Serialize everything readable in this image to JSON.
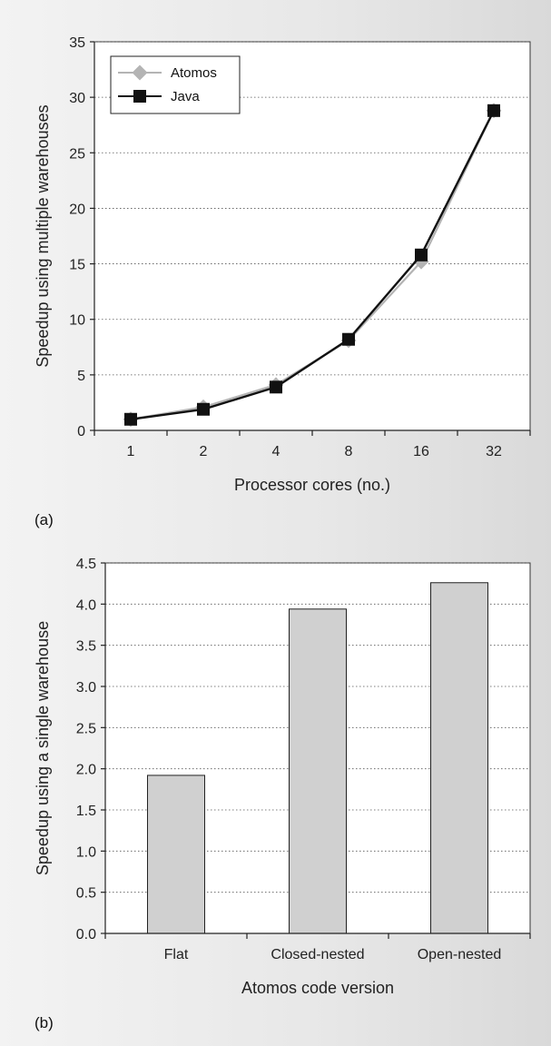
{
  "chart_data": [
    {
      "type": "line",
      "panel_label": "(a)",
      "categories": [
        "1",
        "2",
        "4",
        "8",
        "16",
        "32"
      ],
      "xlabel": "Processor cores (no.)",
      "ylabel": "Speedup using multiple warehouses",
      "ylim": [
        0,
        35
      ],
      "yticks": [
        "0",
        "5",
        "10",
        "15",
        "20",
        "25",
        "30",
        "35"
      ],
      "grid": true,
      "legend_position": "top-left",
      "series": [
        {
          "name": "Atomos",
          "values": [
            1.0,
            2.1,
            4.1,
            8.1,
            15.2,
            28.8
          ],
          "color": "#b4b4b4",
          "marker": "diamond"
        },
        {
          "name": "Java",
          "values": [
            1.0,
            1.9,
            3.9,
            8.2,
            15.8,
            28.8
          ],
          "color": "#111111",
          "marker": "square"
        }
      ]
    },
    {
      "type": "bar",
      "panel_label": "(b)",
      "categories": [
        "Flat",
        "Closed-nested",
        "Open-nested"
      ],
      "values": [
        1.92,
        3.94,
        4.26
      ],
      "xlabel": "Atomos code version",
      "ylabel": "Speedup using a single warehouse",
      "ylim": [
        0,
        4.5
      ],
      "yticks": [
        "0.0",
        "0.5",
        "1.0",
        "1.5",
        "2.0",
        "2.5",
        "3.0",
        "3.5",
        "4.0",
        "4.5"
      ],
      "grid": true,
      "bar_color": "#d0d0d0"
    }
  ]
}
